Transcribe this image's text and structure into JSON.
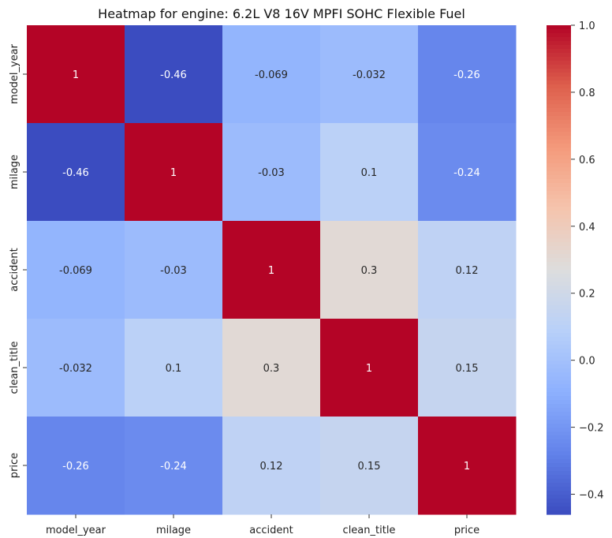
{
  "chart_data": {
    "type": "heatmap",
    "title": "Heatmap for engine: 6.2L V8 16V MPFI SOHC Flexible Fuel",
    "xlabel": "",
    "ylabel": "",
    "x_categories": [
      "model_year",
      "milage",
      "accident",
      "clean_title",
      "price"
    ],
    "y_categories": [
      "model_year",
      "milage",
      "accident",
      "clean_title",
      "price"
    ],
    "values": [
      [
        1,
        -0.46,
        -0.069,
        -0.032,
        -0.26
      ],
      [
        -0.46,
        1,
        -0.03,
        0.1,
        -0.24
      ],
      [
        -0.069,
        -0.03,
        1,
        0.3,
        0.12
      ],
      [
        -0.032,
        0.1,
        0.3,
        1,
        0.15
      ],
      [
        -0.26,
        -0.24,
        0.12,
        0.15,
        1
      ]
    ],
    "cell_labels": [
      [
        "1",
        "-0.46",
        "-0.069",
        "-0.032",
        "-0.26"
      ],
      [
        "-0.46",
        "1",
        "-0.03",
        "0.1",
        "-0.24"
      ],
      [
        "-0.069",
        "-0.03",
        "1",
        "0.3",
        "0.12"
      ],
      [
        "-0.032",
        "0.1",
        "0.3",
        "1",
        "0.15"
      ],
      [
        "-0.26",
        "-0.24",
        "0.12",
        "0.15",
        "1"
      ]
    ],
    "colormap": "coolwarm",
    "colorbar": {
      "range": [
        -0.46,
        1
      ],
      "ticks": [
        1.0,
        0.8,
        0.6,
        0.4,
        0.2,
        0.0,
        -0.2,
        -0.4
      ],
      "tick_labels": [
        "1.0",
        "0.8",
        "0.6",
        "0.4",
        "0.2",
        "0.0",
        "−0.2",
        "−0.4"
      ]
    },
    "grid": false,
    "legend": "colorbar-right"
  }
}
